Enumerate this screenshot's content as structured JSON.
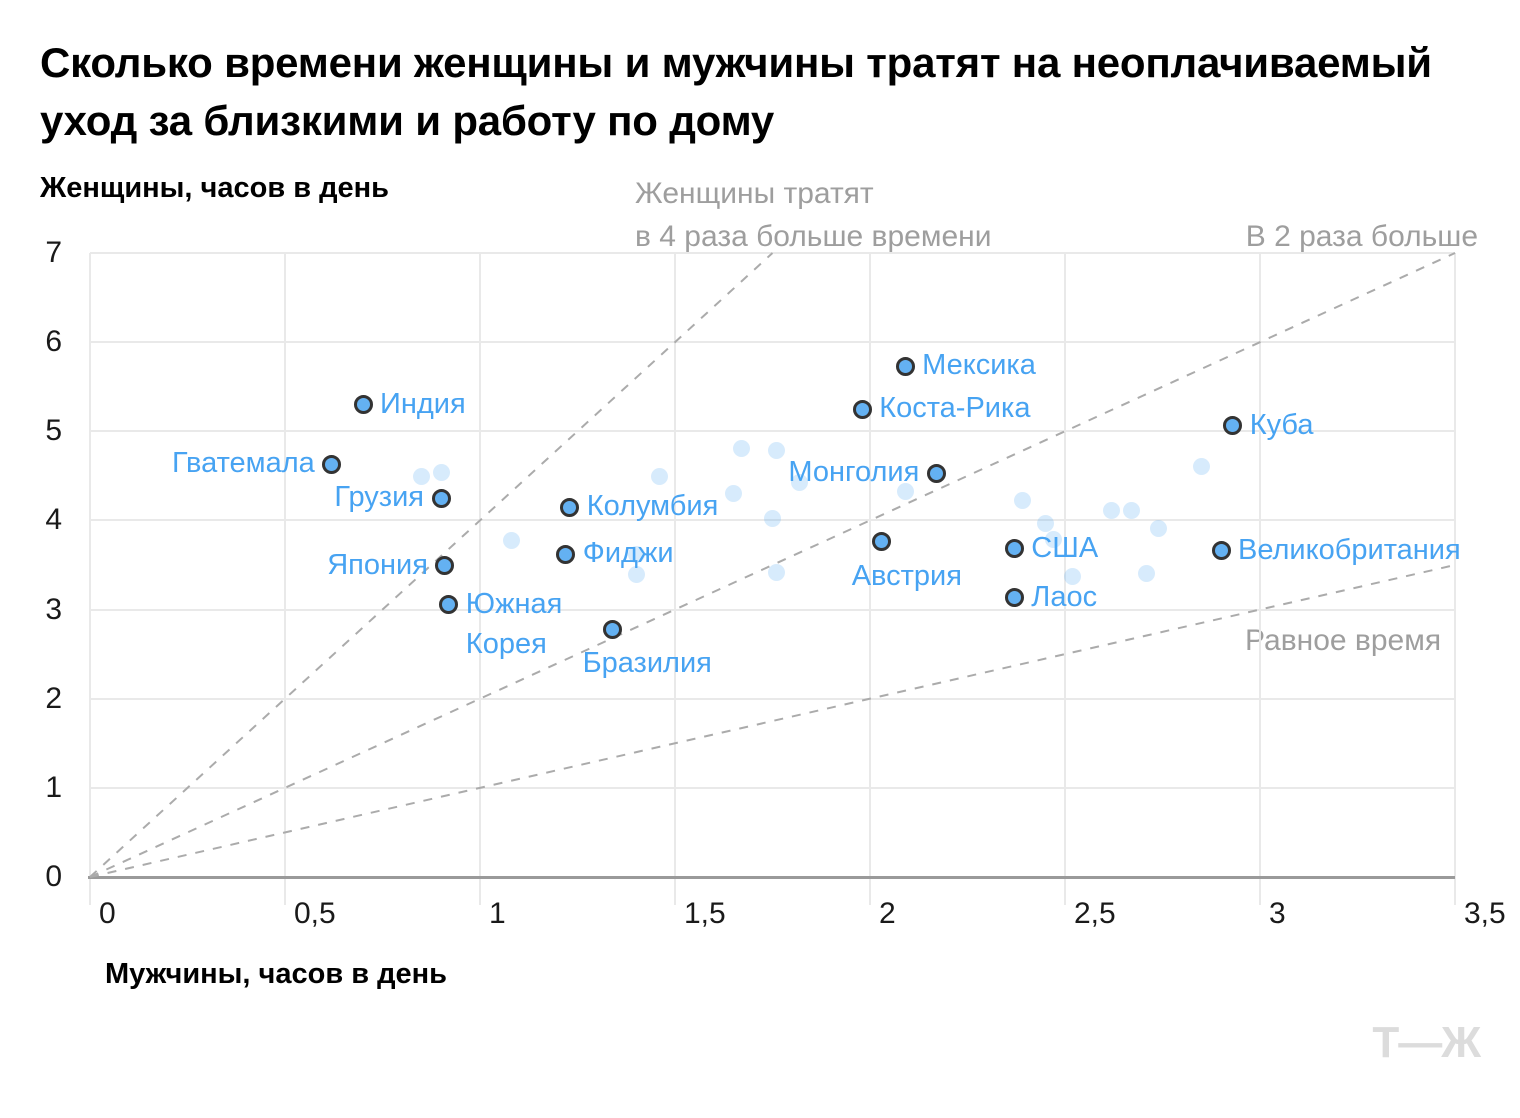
{
  "title": "Сколько времени женщины и мужчины тратят на неоплачиваемый\nуход за близкими и работу по дому",
  "logo_text": "Т—Ж",
  "colors": {
    "label_blue": "#47a3f2",
    "dot_fill": "#64b1f2",
    "dot_stroke": "#333333",
    "faded_dot": "#d7ebfc",
    "grid": "#e9e9e9",
    "axis": "#9a9a9a",
    "annotation_gray": "#9e9e9e",
    "logo_gray": "#dcdcdc"
  },
  "chart_data": {
    "type": "scatter",
    "title": "Сколько времени женщины и мужчины тратят на неоплачиваемый уход за близкими и работу по дому",
    "xlabel": "Мужчины, часов в день",
    "ylabel": "Женщины, часов в день",
    "xlim": [
      0,
      3.5
    ],
    "ylim": [
      0,
      7
    ],
    "grid": true,
    "legend_position": "none",
    "x_ticks": [
      {
        "v": 0,
        "label": "0"
      },
      {
        "v": 0.5,
        "label": "0,5"
      },
      {
        "v": 1,
        "label": "1"
      },
      {
        "v": 1.5,
        "label": "1,5"
      },
      {
        "v": 2,
        "label": "2"
      },
      {
        "v": 2.5,
        "label": "2,5"
      },
      {
        "v": 3,
        "label": "3"
      },
      {
        "v": 3.5,
        "label": "3,5"
      }
    ],
    "y_ticks": [
      {
        "v": 0,
        "label": "0"
      },
      {
        "v": 1,
        "label": "1"
      },
      {
        "v": 2,
        "label": "2"
      },
      {
        "v": 3,
        "label": "3"
      },
      {
        "v": 4,
        "label": "4"
      },
      {
        "v": 5,
        "label": "5"
      },
      {
        "v": 6,
        "label": "6"
      },
      {
        "v": 7,
        "label": "7"
      }
    ],
    "reference_lines": [
      {
        "slope": 4,
        "label": "Женщины тратят\nв 4 раза больше времени"
      },
      {
        "slope": 2,
        "label": "В 2 раза больше"
      },
      {
        "slope": 1,
        "label": "Равное время"
      }
    ],
    "series": [
      {
        "name": "labeled-countries",
        "points": [
          {
            "label": "Индия",
            "x": 0.7,
            "y": 5.3,
            "label_pos": "right"
          },
          {
            "label": "Гватемала",
            "x": 0.62,
            "y": 4.63,
            "label_pos": "left"
          },
          {
            "label": "Грузия",
            "x": 0.9,
            "y": 4.25,
            "label_pos": "left"
          },
          {
            "label": "Япония",
            "x": 0.91,
            "y": 3.49,
            "label_pos": "left"
          },
          {
            "label": "Южная\nКорея",
            "x": 0.92,
            "y": 3.06,
            "label_pos": "right-below"
          },
          {
            "label": "Бразилия",
            "x": 1.34,
            "y": 2.78,
            "label_pos": "below"
          },
          {
            "label": "Колумбия",
            "x": 1.23,
            "y": 4.15,
            "label_pos": "right"
          },
          {
            "label": "Фиджи",
            "x": 1.22,
            "y": 3.62,
            "label_pos": "right"
          },
          {
            "label": "Мексика",
            "x": 2.09,
            "y": 5.73,
            "label_pos": "right"
          },
          {
            "label": "Коста-Рика",
            "x": 1.98,
            "y": 5.25,
            "label_pos": "right"
          },
          {
            "label": "Монголия",
            "x": 2.17,
            "y": 4.53,
            "label_pos": "left"
          },
          {
            "label": "Австрия",
            "x": 2.03,
            "y": 3.76,
            "label_pos": "below"
          },
          {
            "label": "США",
            "x": 2.37,
            "y": 3.68,
            "label_pos": "right"
          },
          {
            "label": "Лаос",
            "x": 2.37,
            "y": 3.13,
            "label_pos": "right"
          },
          {
            "label": "Куба",
            "x": 2.93,
            "y": 5.06,
            "label_pos": "right"
          },
          {
            "label": "Великобритания",
            "x": 2.9,
            "y": 3.66,
            "label_pos": "right"
          }
        ]
      },
      {
        "name": "other-countries",
        "points": [
          [
            0.85,
            4.49
          ],
          [
            0.9,
            4.54
          ],
          [
            1.08,
            3.77
          ],
          [
            1.4,
            3.62
          ],
          [
            1.4,
            3.39
          ],
          [
            1.46,
            4.49
          ],
          [
            1.65,
            4.3
          ],
          [
            1.67,
            4.81
          ],
          [
            1.76,
            4.78
          ],
          [
            1.82,
            4.43
          ],
          [
            1.75,
            4.02
          ],
          [
            1.76,
            3.42
          ],
          [
            2.09,
            4.33
          ],
          [
            2.39,
            4.22
          ],
          [
            2.45,
            3.96
          ],
          [
            2.47,
            3.79
          ],
          [
            2.52,
            3.37
          ],
          [
            2.62,
            4.11
          ],
          [
            2.67,
            4.11
          ],
          [
            2.74,
            3.91
          ],
          [
            2.71,
            3.41
          ],
          [
            2.85,
            4.61
          ]
        ]
      }
    ]
  }
}
